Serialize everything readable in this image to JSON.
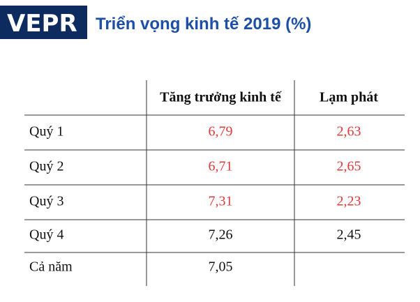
{
  "header": {
    "logo": "VEPR",
    "title": "Triển vọng kinh tế 2019 (%)"
  },
  "table": {
    "columns": [
      "Tăng trưởng kinh tế",
      "Lạm phát"
    ],
    "rows": [
      [
        "Quý 1",
        "6,79",
        "2,63"
      ],
      [
        "Quý 2",
        "6,71",
        "2,65"
      ],
      [
        "Quý 3",
        "7,31",
        "2,23"
      ],
      [
        "Quý 4",
        "7,26",
        "2,45"
      ],
      [
        "Cả năm",
        "7,05"
      ]
    ]
  }
}
